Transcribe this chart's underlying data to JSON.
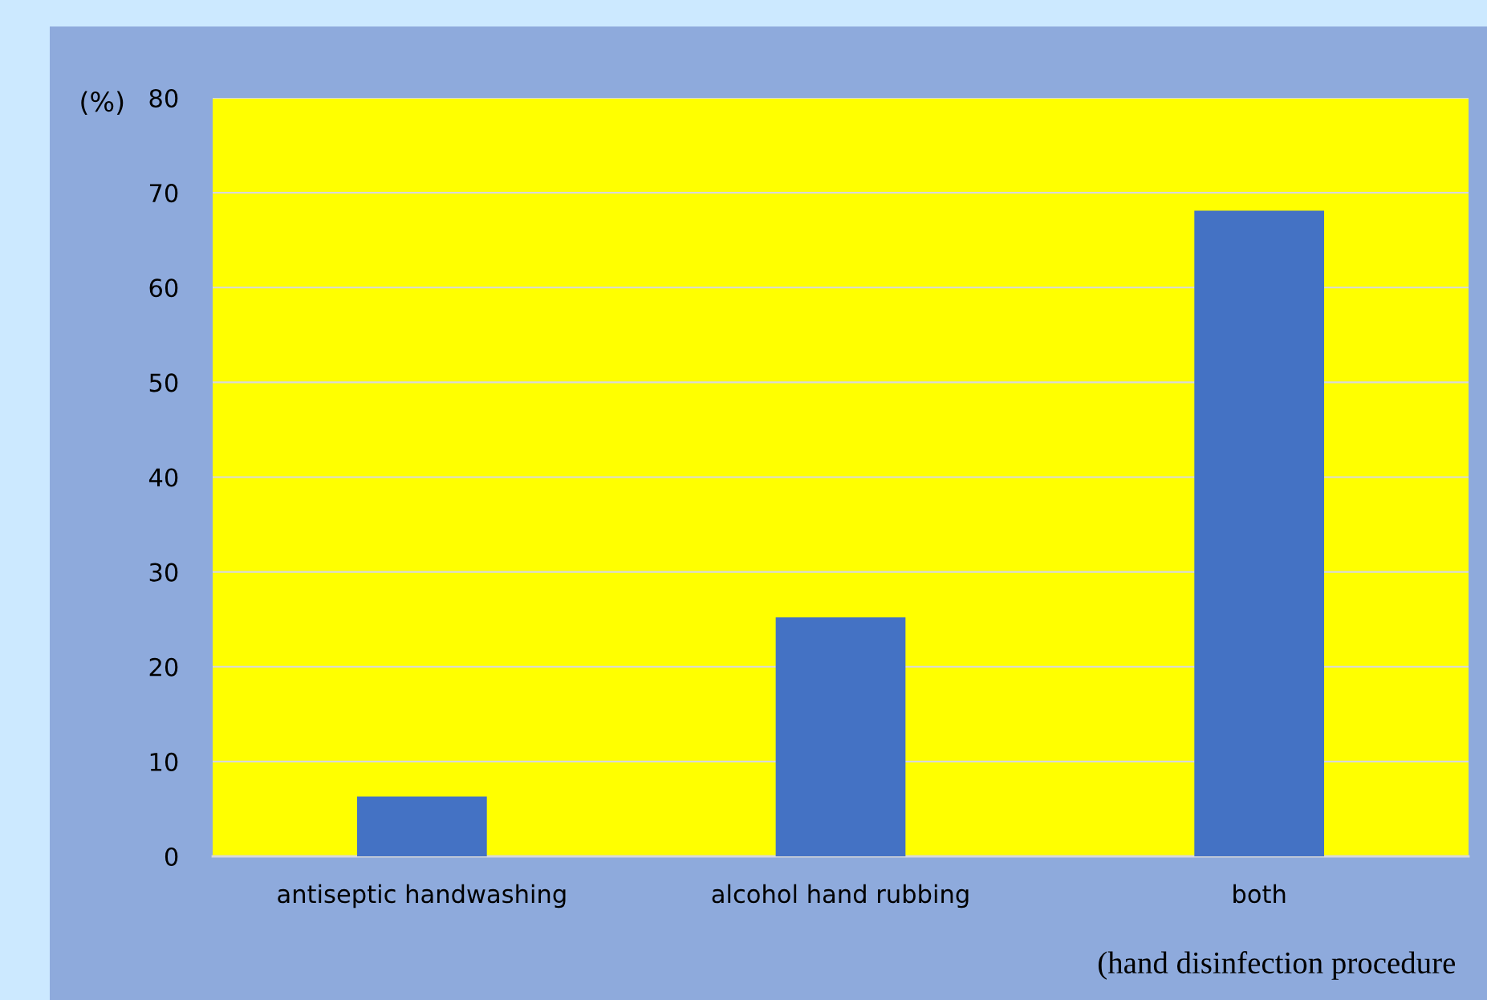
{
  "chart_data": {
    "type": "bar",
    "ylabel": "(%)",
    "xlabel": "(hand disinfection procedure",
    "categories": [
      "antiseptic handwashing",
      "alcohol hand rubbing",
      "both"
    ],
    "values": [
      6.3,
      25.2,
      68.1
    ],
    "color": "#4472c4",
    "ylim": [
      0,
      80
    ],
    "yticks": [
      0,
      10,
      20,
      30,
      40,
      50,
      60,
      70,
      80
    ],
    "grid": "y"
  }
}
